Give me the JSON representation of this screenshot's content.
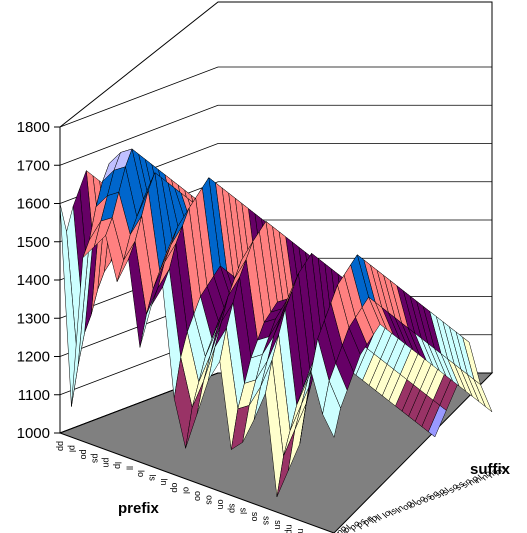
{
  "chart_data": {
    "type": "surface",
    "title": "",
    "xlabel": "prefix",
    "ylabel": "suffix",
    "zlabel": "",
    "zlim": [
      1000,
      1800
    ],
    "z_ticks": [
      "1000",
      "1100",
      "1200",
      "1300",
      "1400",
      "1500",
      "1600",
      "1700",
      "1800"
    ],
    "x_categories": [
      "pp",
      "pl",
      "po",
      "ps",
      "pn",
      "lp",
      "ll",
      "lo",
      "ls",
      "ln",
      "op",
      "ol",
      "oo",
      "os",
      "on",
      "sp",
      "sl",
      "so",
      "ss",
      "sn",
      "np",
      "nl",
      "no",
      "ns",
      "nn"
    ],
    "y_categories": [
      "pp",
      "pl",
      "po",
      "ps",
      "pn",
      "lp",
      "ll",
      "lo",
      "ls",
      "ln",
      "op",
      "ol",
      "oo",
      "os",
      "on",
      "sp",
      "sl",
      "so",
      "ss",
      "sn",
      "np",
      "nl",
      "no",
      "ns",
      "nn"
    ],
    "band_colors": [
      "#9999ff",
      "#993366",
      "#ffffcc",
      "#ccffff",
      "#660066",
      "#ff8080",
      "#0066cc",
      "#c0c0ff"
    ],
    "rows": [
      [
        1600,
        1080,
        1480,
        1520,
        1560,
        1450,
        1520,
        1300,
        1420,
        1480,
        1200,
        1080,
        1180,
        1280,
        1340,
        1120,
        1150,
        1220,
        1300,
        1040,
        1120,
        1200,
        1400,
        1300,
        1250
      ],
      [
        1520,
        1180,
        1520,
        1580,
        1600,
        1500,
        1560,
        1380,
        1460,
        1520,
        1300,
        1180,
        1260,
        1360,
        1420,
        1220,
        1240,
        1300,
        1380,
        1140,
        1220,
        1300,
        1480,
        1380,
        1320
      ],
      [
        1580,
        1260,
        1600,
        1640,
        1660,
        1560,
        1620,
        1440,
        1520,
        1580,
        1360,
        1240,
        1320,
        1420,
        1480,
        1280,
        1300,
        1360,
        1440,
        1200,
        1280,
        1360,
        1520,
        1420,
        1360
      ],
      [
        1620,
        1300,
        1660,
        1700,
        1720,
        1600,
        1680,
        1480,
        1560,
        1620,
        1400,
        1300,
        1380,
        1480,
        1540,
        1340,
        1360,
        1420,
        1500,
        1260,
        1340,
        1420,
        1560,
        1460,
        1400
      ],
      [
        1660,
        1360,
        1700,
        1740,
        1760,
        1640,
        1720,
        1520,
        1600,
        1660,
        1440,
        1340,
        1420,
        1520,
        1580,
        1380,
        1400,
        1460,
        1540,
        1300,
        1380,
        1460,
        1600,
        1500,
        1440
      ],
      [
        1640,
        1400,
        1680,
        1720,
        1740,
        1620,
        1700,
        1540,
        1620,
        1680,
        1460,
        1380,
        1460,
        1560,
        1620,
        1420,
        1440,
        1500,
        1580,
        1340,
        1420,
        1500,
        1620,
        1520,
        1460
      ],
      [
        1620,
        1420,
        1660,
        1700,
        1720,
        1600,
        1680,
        1560,
        1640,
        1700,
        1480,
        1400,
        1480,
        1580,
        1640,
        1440,
        1460,
        1520,
        1600,
        1360,
        1440,
        1520,
        1640,
        1540,
        1480
      ],
      [
        1600,
        1440,
        1640,
        1680,
        1700,
        1580,
        1660,
        1580,
        1660,
        1720,
        1500,
        1420,
        1500,
        1600,
        1660,
        1460,
        1480,
        1540,
        1620,
        1380,
        1460,
        1540,
        1660,
        1560,
        1500
      ],
      [
        1580,
        1420,
        1620,
        1660,
        1680,
        1560,
        1640,
        1560,
        1640,
        1700,
        1480,
        1400,
        1480,
        1580,
        1640,
        1440,
        1460,
        1520,
        1600,
        1360,
        1440,
        1520,
        1640,
        1540,
        1480
      ],
      [
        1560,
        1400,
        1600,
        1640,
        1660,
        1540,
        1620,
        1540,
        1620,
        1680,
        1460,
        1380,
        1460,
        1560,
        1620,
        1420,
        1440,
        1500,
        1580,
        1340,
        1420,
        1500,
        1620,
        1520,
        1460
      ],
      [
        1540,
        1380,
        1580,
        1620,
        1640,
        1520,
        1600,
        1520,
        1600,
        1660,
        1440,
        1360,
        1440,
        1540,
        1600,
        1400,
        1420,
        1480,
        1560,
        1320,
        1400,
        1480,
        1600,
        1500,
        1440
      ],
      [
        1520,
        1360,
        1560,
        1600,
        1620,
        1500,
        1580,
        1500,
        1580,
        1640,
        1420,
        1340,
        1420,
        1520,
        1580,
        1380,
        1400,
        1460,
        1540,
        1300,
        1380,
        1460,
        1580,
        1480,
        1420
      ],
      [
        1500,
        1340,
        1540,
        1580,
        1600,
        1480,
        1560,
        1480,
        1560,
        1620,
        1400,
        1320,
        1400,
        1500,
        1560,
        1360,
        1380,
        1440,
        1520,
        1280,
        1360,
        1440,
        1560,
        1460,
        1400
      ],
      [
        1480,
        1320,
        1520,
        1560,
        1580,
        1460,
        1540,
        1460,
        1540,
        1600,
        1380,
        1300,
        1380,
        1480,
        1540,
        1340,
        1360,
        1420,
        1500,
        1260,
        1340,
        1420,
        1540,
        1440,
        1380
      ],
      [
        1460,
        1300,
        1500,
        1540,
        1560,
        1440,
        1520,
        1440,
        1520,
        1580,
        1360,
        1280,
        1360,
        1460,
        1520,
        1320,
        1340,
        1400,
        1480,
        1240,
        1320,
        1400,
        1520,
        1420,
        1360
      ],
      [
        1440,
        1280,
        1480,
        1520,
        1540,
        1420,
        1500,
        1420,
        1500,
        1560,
        1340,
        1260,
        1340,
        1440,
        1500,
        1300,
        1320,
        1380,
        1460,
        1220,
        1300,
        1380,
        1500,
        1400,
        1340
      ],
      [
        1420,
        1260,
        1460,
        1500,
        1520,
        1400,
        1480,
        1400,
        1480,
        1540,
        1320,
        1240,
        1320,
        1420,
        1480,
        1280,
        1300,
        1360,
        1440,
        1200,
        1280,
        1360,
        1480,
        1380,
        1320
      ],
      [
        1400,
        1240,
        1440,
        1480,
        1500,
        1380,
        1460,
        1380,
        1460,
        1520,
        1300,
        1220,
        1300,
        1400,
        1460,
        1260,
        1280,
        1340,
        1420,
        1180,
        1260,
        1340,
        1460,
        1360,
        1300
      ],
      [
        1380,
        1220,
        1420,
        1460,
        1480,
        1360,
        1440,
        1360,
        1440,
        1500,
        1280,
        1200,
        1280,
        1380,
        1440,
        1240,
        1260,
        1320,
        1400,
        1160,
        1240,
        1320,
        1440,
        1340,
        1280
      ],
      [
        1360,
        1200,
        1400,
        1440,
        1460,
        1340,
        1420,
        1340,
        1420,
        1480,
        1260,
        1180,
        1260,
        1360,
        1420,
        1220,
        1240,
        1300,
        1380,
        1140,
        1220,
        1300,
        1420,
        1320,
        1260
      ],
      [
        1340,
        1180,
        1380,
        1420,
        1440,
        1320,
        1400,
        1320,
        1400,
        1460,
        1240,
        1160,
        1240,
        1340,
        1400,
        1200,
        1220,
        1280,
        1360,
        1120,
        1200,
        1280,
        1400,
        1300,
        1240
      ],
      [
        1320,
        1160,
        1360,
        1400,
        1420,
        1300,
        1380,
        1300,
        1380,
        1440,
        1220,
        1140,
        1220,
        1320,
        1380,
        1180,
        1200,
        1260,
        1340,
        1100,
        1180,
        1260,
        1380,
        1280,
        1220
      ],
      [
        1300,
        1140,
        1340,
        1380,
        1400,
        1280,
        1360,
        1280,
        1360,
        1420,
        1200,
        1120,
        1200,
        1300,
        1360,
        1160,
        1180,
        1240,
        1320,
        1080,
        1160,
        1240,
        1360,
        1260,
        1200
      ],
      [
        1280,
        1120,
        1320,
        1360,
        1380,
        1260,
        1340,
        1260,
        1340,
        1400,
        1180,
        1100,
        1180,
        1280,
        1340,
        1140,
        1160,
        1220,
        1300,
        1060,
        1140,
        1220,
        1340,
        1240,
        1180
      ],
      [
        1260,
        1100,
        1300,
        1340,
        1360,
        1240,
        1320,
        1240,
        1320,
        1380,
        1160,
        1080,
        1160,
        1260,
        1320,
        1120,
        1140,
        1200,
        1280,
        1040,
        1120,
        1200,
        1320,
        1220,
        1160
      ]
    ]
  }
}
